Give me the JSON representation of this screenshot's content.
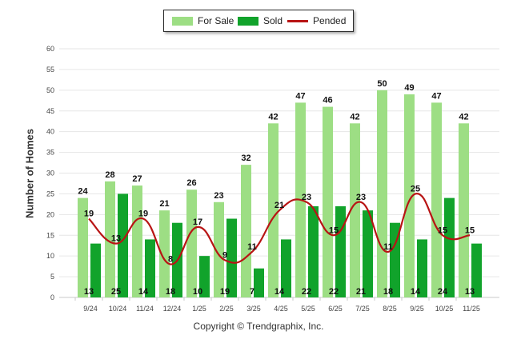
{
  "chart_data": {
    "type": "bar",
    "categories": [
      "9/24",
      "10/24",
      "11/24",
      "12/24",
      "1/25",
      "2/25",
      "3/25",
      "4/25",
      "5/25",
      "6/25",
      "7/25",
      "8/25",
      "9/25",
      "10/25",
      "11/25"
    ],
    "series": [
      {
        "name": "For Sale",
        "kind": "bar",
        "color": "#9dde84",
        "values": [
          24,
          28,
          27,
          21,
          26,
          23,
          32,
          42,
          47,
          46,
          42,
          50,
          49,
          47,
          42
        ]
      },
      {
        "name": "Sold",
        "kind": "bar",
        "color": "#11a32b",
        "values": [
          13,
          25,
          14,
          18,
          10,
          19,
          7,
          14,
          22,
          22,
          21,
          18,
          14,
          24,
          13
        ]
      },
      {
        "name": "Pended",
        "kind": "line",
        "color": "#b81414",
        "values": [
          19,
          13,
          19,
          8,
          17,
          9,
          11,
          21,
          23,
          15,
          23,
          11,
          25,
          15,
          15
        ]
      }
    ],
    "ylabel": "Number of Homes",
    "ylim": [
      0,
      60
    ],
    "yticks": [
      0,
      5,
      10,
      15,
      20,
      25,
      30,
      35,
      40,
      45,
      50,
      55,
      60
    ],
    "grid": true,
    "legend_position": "top-center"
  },
  "copyright": "Copyright © Trendgraphix, Inc."
}
